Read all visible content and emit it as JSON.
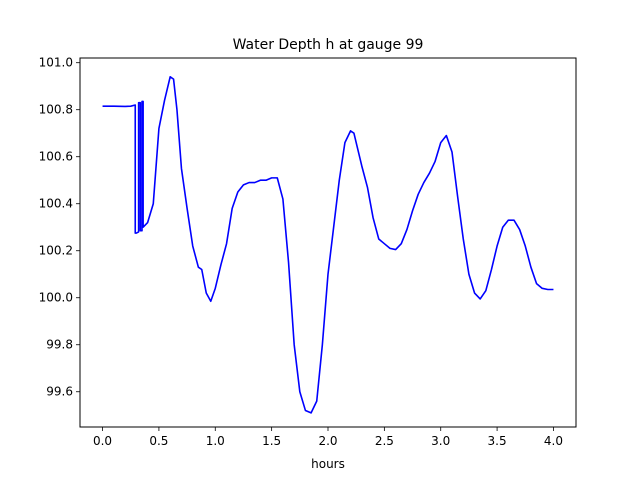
{
  "chart_data": {
    "type": "line",
    "title": "Water Depth h at gauge 99",
    "xlabel": "hours",
    "ylabel": "",
    "xlim": [
      -0.2,
      4.2
    ],
    "ylim": [
      99.45,
      101.02
    ],
    "grid": false,
    "legend": "none",
    "xticks": [
      {
        "value": 0.0,
        "label": "0.0"
      },
      {
        "value": 0.5,
        "label": "0.5"
      },
      {
        "value": 1.0,
        "label": "1.0"
      },
      {
        "value": 1.5,
        "label": "1.5"
      },
      {
        "value": 2.0,
        "label": "2.0"
      },
      {
        "value": 2.5,
        "label": "2.5"
      },
      {
        "value": 3.0,
        "label": "3.0"
      },
      {
        "value": 3.5,
        "label": "3.5"
      },
      {
        "value": 4.0,
        "label": "4.0"
      }
    ],
    "yticks": [
      {
        "value": 99.6,
        "label": "99.6"
      },
      {
        "value": 99.8,
        "label": "99.8"
      },
      {
        "value": 100.0,
        "label": "100.0"
      },
      {
        "value": 100.2,
        "label": "100.2"
      },
      {
        "value": 100.4,
        "label": "100.4"
      },
      {
        "value": 100.6,
        "label": "100.6"
      },
      {
        "value": 100.8,
        "label": "100.8"
      },
      {
        "value": 101.0,
        "label": "101.0"
      }
    ],
    "series": [
      {
        "color": "#0000ff",
        "x": [
          0.0,
          0.1,
          0.2,
          0.25,
          0.29,
          0.29,
          0.3,
          0.32,
          0.32,
          0.335,
          0.335,
          0.35,
          0.35,
          0.36,
          0.36,
          0.4,
          0.45,
          0.5,
          0.55,
          0.6,
          0.63,
          0.66,
          0.7,
          0.75,
          0.8,
          0.85,
          0.88,
          0.92,
          0.96,
          1.0,
          1.05,
          1.1,
          1.15,
          1.2,
          1.25,
          1.3,
          1.35,
          1.4,
          1.45,
          1.5,
          1.55,
          1.6,
          1.65,
          1.7,
          1.75,
          1.8,
          1.85,
          1.9,
          1.95,
          2.0,
          2.05,
          2.1,
          2.15,
          2.2,
          2.23,
          2.26,
          2.3,
          2.35,
          2.4,
          2.45,
          2.5,
          2.55,
          2.6,
          2.65,
          2.7,
          2.75,
          2.8,
          2.85,
          2.9,
          2.95,
          3.0,
          3.05,
          3.1,
          3.15,
          3.2,
          3.25,
          3.3,
          3.35,
          3.4,
          3.45,
          3.5,
          3.55,
          3.6,
          3.65,
          3.7,
          3.75,
          3.8,
          3.85,
          3.9,
          3.95,
          4.0
        ],
        "y": [
          100.815,
          100.815,
          100.814,
          100.815,
          100.82,
          100.275,
          100.275,
          100.28,
          100.83,
          100.83,
          100.285,
          100.285,
          100.835,
          100.835,
          100.3,
          100.32,
          100.4,
          100.72,
          100.84,
          100.94,
          100.93,
          100.8,
          100.55,
          100.38,
          100.22,
          100.13,
          100.12,
          100.02,
          99.985,
          100.04,
          100.14,
          100.23,
          100.38,
          100.45,
          100.48,
          100.49,
          100.49,
          100.5,
          100.5,
          100.51,
          100.51,
          100.42,
          100.15,
          99.8,
          99.6,
          99.52,
          99.51,
          99.56,
          99.8,
          100.1,
          100.3,
          100.5,
          100.66,
          100.71,
          100.7,
          100.64,
          100.56,
          100.47,
          100.34,
          100.25,
          100.23,
          100.21,
          100.205,
          100.23,
          100.29,
          100.37,
          100.44,
          100.49,
          100.53,
          100.58,
          100.66,
          100.69,
          100.62,
          100.43,
          100.25,
          100.1,
          100.02,
          99.995,
          100.03,
          100.12,
          100.22,
          100.3,
          100.33,
          100.33,
          100.29,
          100.22,
          100.13,
          100.06,
          100.04,
          100.035,
          100.035
        ]
      }
    ]
  }
}
